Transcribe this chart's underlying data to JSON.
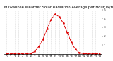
{
  "title": "Milwaukee Weather Solar Radiation Average per Hour W/m2 (24 Hours)",
  "hours": [
    0,
    1,
    2,
    3,
    4,
    5,
    6,
    7,
    8,
    9,
    10,
    11,
    12,
    13,
    14,
    15,
    16,
    17,
    18,
    19,
    20,
    21,
    22,
    23
  ],
  "values": [
    0,
    0,
    0,
    0,
    0,
    2,
    5,
    25,
    85,
    165,
    280,
    390,
    450,
    420,
    350,
    240,
    130,
    50,
    10,
    2,
    0,
    0,
    0,
    0
  ],
  "line_color": "#dd0000",
  "bg_color": "#ffffff",
  "grid_color": "#bbbbbb",
  "ylim": [
    0,
    500
  ],
  "ytick_vals": [
    100,
    200,
    300,
    400,
    500
  ],
  "ytick_labels": [
    "1",
    "2",
    "3",
    "4",
    "5"
  ],
  "xlabel_fontsize": 3.0,
  "ylabel_fontsize": 3.2,
  "title_fontsize": 3.8
}
